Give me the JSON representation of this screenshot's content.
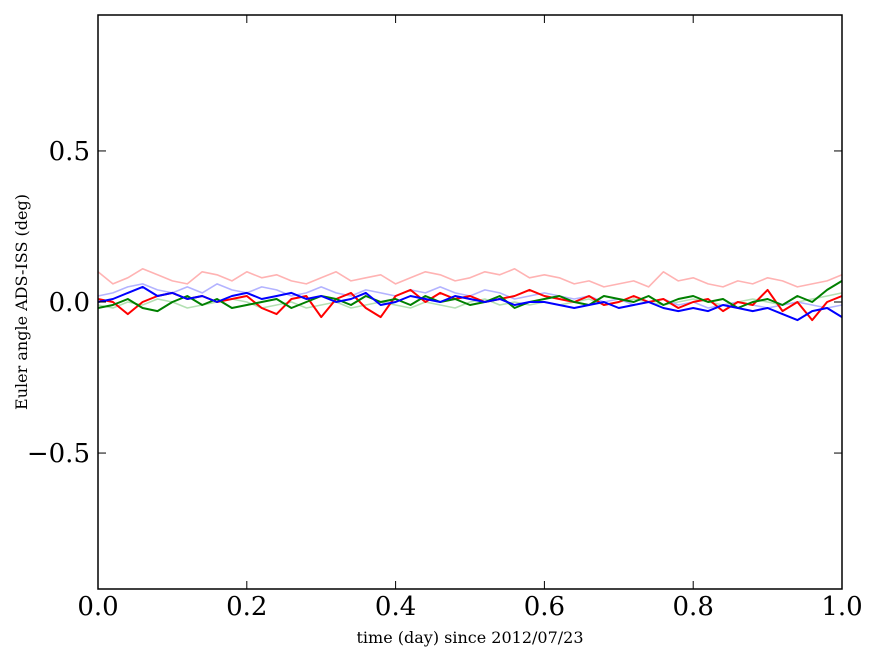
{
  "chart_data": {
    "type": "line",
    "title": "",
    "xlabel": "time (day) since 2012/07/23",
    "ylabel": "Euler angle ADS-ISS (deg)",
    "xlim": [
      0.0,
      1.0
    ],
    "ylim": [
      -0.95,
      0.95
    ],
    "xticks": [
      0.0,
      0.2,
      0.4,
      0.6,
      0.8,
      1.0
    ],
    "xtick_labels": [
      "0.0",
      "0.2",
      "0.4",
      "0.6",
      "0.8",
      "1.0"
    ],
    "yticks": [
      -0.5,
      0.0,
      0.5
    ],
    "ytick_labels": [
      "−0.5",
      "0.0",
      "0.5"
    ],
    "grid": false,
    "legend": "none",
    "x": [
      0.0,
      0.02,
      0.04,
      0.06,
      0.08,
      0.1,
      0.12,
      0.14,
      0.16,
      0.18,
      0.2,
      0.22,
      0.24,
      0.26,
      0.28,
      0.3,
      0.32,
      0.34,
      0.36,
      0.38,
      0.4,
      0.42,
      0.44,
      0.46,
      0.48,
      0.5,
      0.52,
      0.54,
      0.56,
      0.58,
      0.6,
      0.62,
      0.64,
      0.66,
      0.68,
      0.7,
      0.72,
      0.74,
      0.76,
      0.78,
      0.8,
      0.82,
      0.84,
      0.86,
      0.88,
      0.9,
      0.92,
      0.94,
      0.96,
      0.98,
      1.0
    ],
    "series": [
      {
        "color": "#ffb3b3",
        "values": [
          0.1,
          0.06,
          0.08,
          0.11,
          0.09,
          0.07,
          0.06,
          0.1,
          0.09,
          0.07,
          0.1,
          0.08,
          0.09,
          0.07,
          0.06,
          0.08,
          0.1,
          0.07,
          0.08,
          0.09,
          0.06,
          0.08,
          0.1,
          0.09,
          0.07,
          0.08,
          0.1,
          0.09,
          0.11,
          0.08,
          0.09,
          0.08,
          0.06,
          0.07,
          0.05,
          0.06,
          0.07,
          0.05,
          0.1,
          0.07,
          0.08,
          0.06,
          0.05,
          0.07,
          0.06,
          0.08,
          0.07,
          0.05,
          0.06,
          0.07,
          0.09
        ]
      },
      {
        "color": "#b3e0b3",
        "values": [
          -0.01,
          -0.02,
          0.0,
          -0.01,
          0.01,
          0.0,
          -0.02,
          -0.01,
          0.0,
          0.01,
          0.0,
          -0.02,
          -0.01,
          0.0,
          -0.02,
          -0.01,
          0.0,
          -0.02,
          -0.01,
          0.0,
          -0.01,
          -0.02,
          0.0,
          -0.01,
          -0.02,
          0.0,
          0.01,
          -0.01,
          0.0,
          -0.01,
          0.0,
          -0.01,
          0.0,
          0.01,
          -0.01,
          0.0,
          0.01,
          0.0,
          -0.01,
          0.0,
          0.01,
          0.0,
          -0.01,
          0.0,
          0.01,
          0.0,
          -0.01,
          0.0,
          0.01,
          0.02,
          0.03
        ]
      },
      {
        "color": "#b3b3ff",
        "values": [
          0.02,
          0.03,
          0.05,
          0.06,
          0.04,
          0.03,
          0.05,
          0.03,
          0.06,
          0.04,
          0.03,
          0.05,
          0.04,
          0.02,
          0.03,
          0.05,
          0.03,
          0.02,
          0.04,
          0.03,
          0.02,
          0.04,
          0.03,
          0.05,
          0.03,
          0.02,
          0.04,
          0.03,
          0.01,
          0.02,
          0.03,
          0.02,
          0.01,
          0.02,
          0.0,
          0.01,
          -0.01,
          0.0,
          0.01,
          -0.01,
          0.0,
          -0.02,
          -0.01,
          0.0,
          -0.01,
          -0.02,
          -0.01,
          0.0,
          -0.01,
          -0.02,
          -0.01
        ]
      },
      {
        "color": "#ff0000",
        "values": [
          0.01,
          0.0,
          -0.04,
          0.0,
          0.02,
          0.03,
          0.01,
          0.02,
          0.0,
          0.01,
          0.02,
          -0.02,
          -0.04,
          0.01,
          0.02,
          -0.05,
          0.01,
          0.03,
          -0.02,
          -0.05,
          0.02,
          0.04,
          0.0,
          0.03,
          0.01,
          0.02,
          0.0,
          0.01,
          0.02,
          0.04,
          0.02,
          0.01,
          0.0,
          0.02,
          -0.01,
          0.0,
          0.02,
          0.0,
          0.01,
          -0.02,
          0.0,
          0.01,
          -0.03,
          0.0,
          -0.01,
          0.04,
          -0.03,
          0.0,
          -0.06,
          0.0,
          0.02
        ]
      },
      {
        "color": "#008000",
        "values": [
          -0.02,
          -0.01,
          0.01,
          -0.02,
          -0.03,
          0.0,
          0.02,
          -0.01,
          0.01,
          -0.02,
          -0.01,
          0.0,
          0.01,
          -0.02,
          0.0,
          0.02,
          0.01,
          -0.01,
          0.02,
          0.0,
          0.01,
          -0.01,
          0.02,
          0.0,
          0.01,
          -0.01,
          0.0,
          0.02,
          -0.02,
          0.0,
          0.01,
          0.02,
          0.0,
          -0.01,
          0.02,
          0.01,
          0.0,
          0.02,
          -0.01,
          0.01,
          0.02,
          0.0,
          0.01,
          -0.02,
          0.0,
          0.01,
          -0.01,
          0.02,
          0.0,
          0.04,
          0.07
        ]
      },
      {
        "color": "#0000ff",
        "values": [
          0.0,
          0.01,
          0.03,
          0.05,
          0.02,
          0.03,
          0.01,
          0.02,
          0.0,
          0.02,
          0.03,
          0.01,
          0.02,
          0.03,
          0.01,
          0.02,
          0.0,
          0.01,
          0.03,
          -0.01,
          0.0,
          0.02,
          0.01,
          0.0,
          0.02,
          0.01,
          0.0,
          0.01,
          -0.01,
          0.0,
          0.0,
          -0.01,
          -0.02,
          -0.01,
          0.0,
          -0.02,
          -0.01,
          0.0,
          -0.02,
          -0.03,
          -0.02,
          -0.03,
          -0.01,
          -0.02,
          -0.03,
          -0.02,
          -0.04,
          -0.06,
          -0.03,
          -0.02,
          -0.05
        ]
      }
    ]
  }
}
